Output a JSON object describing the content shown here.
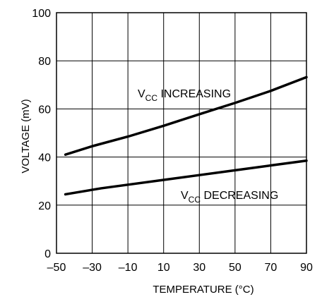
{
  "chart_data": {
    "type": "line",
    "title": "",
    "xlabel": "TEMPERATURE (°C)",
    "ylabel": "VOLTAGE (mV)",
    "xlim": [
      -50,
      90
    ],
    "ylim": [
      0,
      100
    ],
    "xticks": [
      -50,
      -30,
      -10,
      10,
      30,
      50,
      70,
      90
    ],
    "yticks": [
      0,
      20,
      40,
      60,
      80,
      100
    ],
    "xtick_labels": [
      "–50",
      "–30",
      "–10",
      "10",
      "30",
      "50",
      "70",
      "90"
    ],
    "ytick_labels": [
      "0",
      "20",
      "40",
      "60",
      "80",
      "100"
    ],
    "grid": true,
    "legend": "none",
    "series": [
      {
        "label_main": "V",
        "label_sub": "CC",
        "label_rest": " INCREASING",
        "x": [
          -45,
          -30,
          -10,
          10,
          30,
          50,
          70,
          90
        ],
        "y": [
          41,
          44.5,
          48.5,
          53,
          57.8,
          62.5,
          67.5,
          73.2
        ]
      },
      {
        "label_main": "V",
        "label_sub": "CC",
        "label_rest": " DECREASING",
        "x": [
          -45,
          -25,
          -10,
          10,
          30,
          50,
          70,
          90
        ],
        "y": [
          24.5,
          27,
          28.5,
          30.5,
          32.5,
          34.5,
          36.5,
          38.5
        ]
      }
    ],
    "colors": {
      "line": "#000000",
      "grid": "#000000",
      "background": "#ffffff"
    }
  }
}
